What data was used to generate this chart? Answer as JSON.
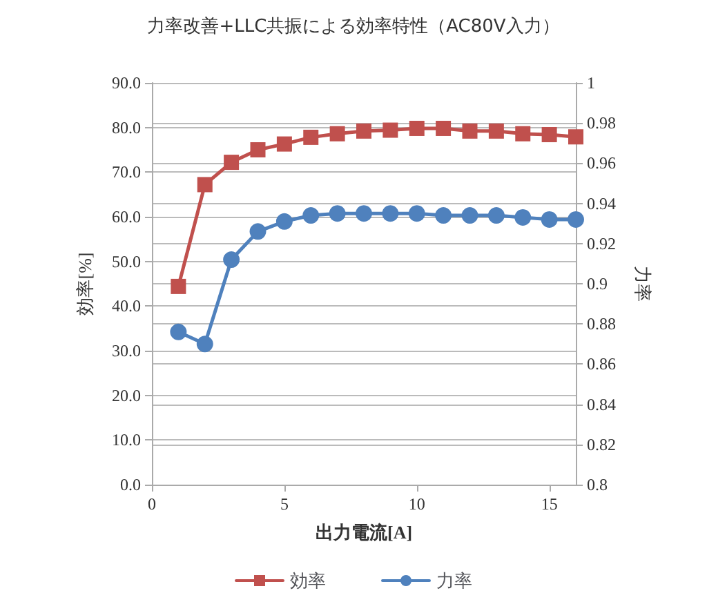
{
  "chart_data": {
    "type": "line",
    "title": "力率改善+LLC共振による効率特性（AC80V入力）",
    "xlabel": "出力電流[A]",
    "ylabel": "効率[%]",
    "y2label": "力率",
    "x": [
      1,
      2,
      3,
      4,
      5,
      6,
      7,
      8,
      9,
      10,
      11,
      12,
      13,
      14,
      15,
      16
    ],
    "series": [
      {
        "name": "効率",
        "color": "#c0504d",
        "marker": "square",
        "values": [
          44.4,
          67.2,
          72.2,
          75.0,
          76.3,
          77.8,
          78.6,
          79.2,
          79.4,
          79.8,
          79.8,
          79.2,
          79.2,
          78.6,
          78.4,
          77.9
        ]
      },
      {
        "name": "力率",
        "color": "#4f81bd",
        "marker": "circle",
        "axis": "y2",
        "values": [
          0.876,
          0.87,
          0.912,
          0.926,
          0.931,
          0.934,
          0.935,
          0.935,
          0.935,
          0.935,
          0.934,
          0.934,
          0.934,
          0.933,
          0.932,
          0.932
        ]
      }
    ],
    "xlim": [
      0,
      16
    ],
    "xticks": [
      0,
      5,
      10,
      15
    ],
    "ylim": [
      0,
      90
    ],
    "yticks": [
      {
        "value": 0,
        "label": "0.0"
      },
      {
        "value": 10,
        "label": "10.0"
      },
      {
        "value": 20,
        "label": "20.0"
      },
      {
        "value": 30,
        "label": "30.0"
      },
      {
        "value": 40,
        "label": "40.0"
      },
      {
        "value": 50,
        "label": "50.0"
      },
      {
        "value": 60,
        "label": "60.0"
      },
      {
        "value": 70,
        "label": "70.0"
      },
      {
        "value": 80,
        "label": "80.0"
      },
      {
        "value": 90,
        "label": "90.0"
      }
    ],
    "y2lim": [
      0.8,
      1
    ],
    "y2ticks": [
      0.8,
      0.82,
      0.84,
      0.86,
      0.88,
      0.9,
      0.92,
      0.94,
      0.96,
      0.98,
      1
    ],
    "grid": "y",
    "legend": "bottom",
    "line_style": "solid"
  }
}
